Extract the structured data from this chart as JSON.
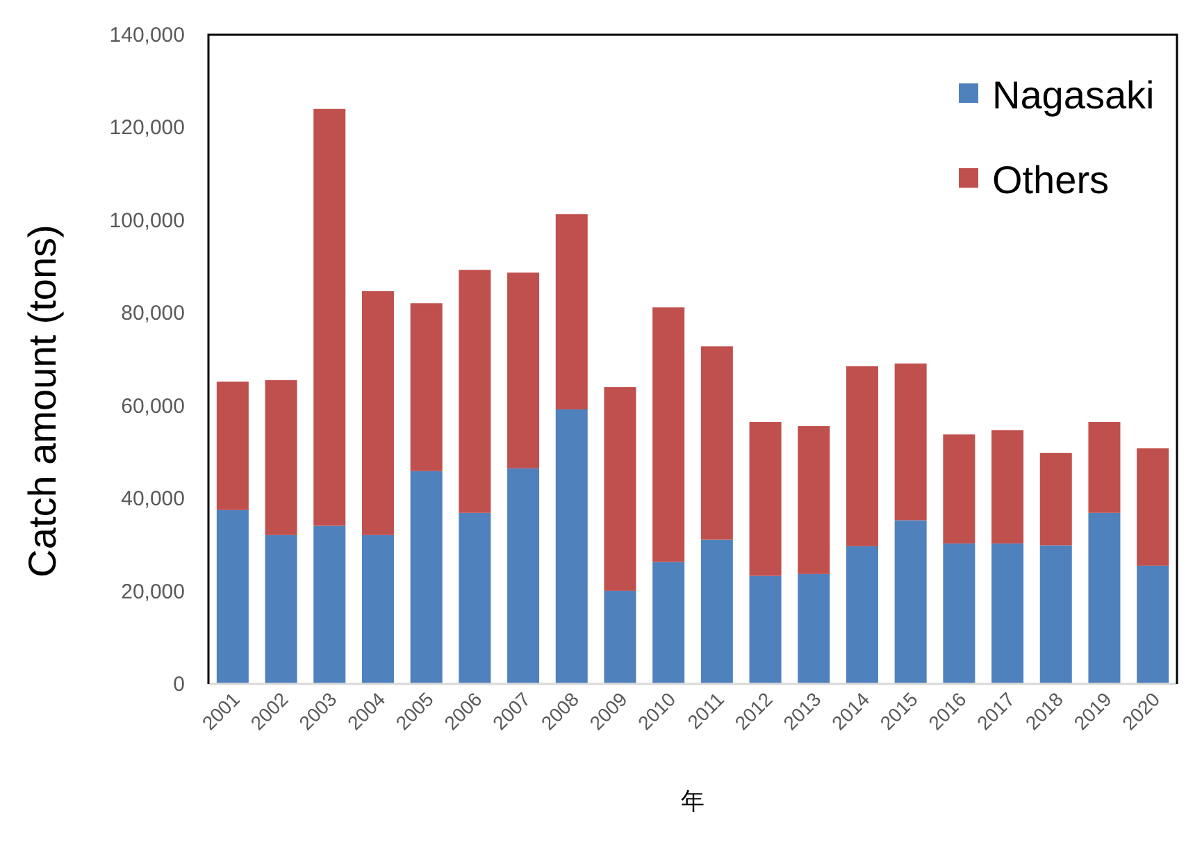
{
  "chart_data": {
    "type": "bar",
    "stacked": true,
    "ylabel": "Catch amount (tons)",
    "xlabel": "年",
    "legend": "top right",
    "grid": false,
    "categories": [
      "2001",
      "2002",
      "2003",
      "2004",
      "2005",
      "2006",
      "2007",
      "2008",
      "2009",
      "2010",
      "2011",
      "2012",
      "2013",
      "2014",
      "2015",
      "2016",
      "2017",
      "2018",
      "2019",
      "2020"
    ],
    "ylim": [
      0,
      140000
    ],
    "yticks": [
      0,
      {
        "value": 20000,
        "label": "20,000"
      },
      {
        "value": 40000,
        "label": "40,000"
      },
      {
        "value": 60000,
        "label": "60,000"
      },
      {
        "value": 80000,
        "label": "80,000"
      },
      {
        "value": 100000,
        "label": "100,000"
      },
      {
        "value": 120000,
        "label": "120,000"
      },
      {
        "value": 140000,
        "label": "140,000"
      }
    ],
    "series": [
      {
        "name": "Nagasaki",
        "color": "#4f81bd",
        "values": [
          37500,
          32100,
          34100,
          32100,
          45900,
          36900,
          46500,
          59200,
          20100,
          26300,
          31100,
          23300,
          23700,
          29700,
          35300,
          30300,
          30300,
          29900,
          36900,
          25500
        ]
      },
      {
        "name": "Others",
        "color": "#c0504d",
        "values": [
          27700,
          33400,
          89900,
          52600,
          36200,
          52400,
          42200,
          42100,
          43900,
          54900,
          41700,
          33200,
          31900,
          38800,
          33800,
          23500,
          24400,
          19900,
          19600,
          25300
        ]
      }
    ]
  }
}
